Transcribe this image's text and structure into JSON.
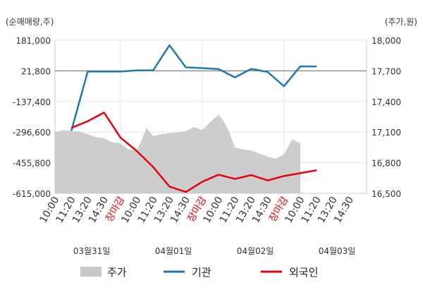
{
  "chart_data": {
    "type": "line",
    "left_axis_title": "(순매매량,주)",
    "right_axis_title": "(주가,원)",
    "left_ticks": [
      "181,000",
      "21,800",
      "-137,400",
      "-296,600",
      "-455,800",
      "-615,000"
    ],
    "left_tick_values": [
      181000,
      21800,
      -137400,
      -296600,
      -455800,
      -615000
    ],
    "right_ticks": [
      "18,000",
      "17,700",
      "17,400",
      "17,100",
      "16,800",
      "16,500"
    ],
    "right_tick_values": [
      18000,
      17700,
      17400,
      17100,
      16800,
      16500
    ],
    "left_ylim": [
      -615000,
      181000
    ],
    "right_ylim": [
      16500,
      18000
    ],
    "x_tick_labels": [
      "10:00",
      "11:20",
      "13:20",
      "14:30",
      "장마감",
      "10:00",
      "11:20",
      "13:20",
      "14:30",
      "장마감",
      "10:00",
      "11:20",
      "13:20",
      "14:30",
      "장마감",
      "10:00",
      "11:20",
      "13:20",
      "14:30"
    ],
    "x_tick_red": [
      false,
      false,
      false,
      false,
      true,
      false,
      false,
      false,
      false,
      true,
      false,
      false,
      false,
      false,
      true,
      false,
      false,
      false,
      false
    ],
    "date_labels": [
      "03월31일",
      "04월01일",
      "04월02일",
      "04월03일"
    ],
    "zero_line_value": 21800,
    "series": [
      {
        "name": "기관",
        "color": "#1f77b4",
        "axis": "left",
        "x": [
          1,
          2,
          3,
          4,
          5,
          6,
          7,
          8,
          9,
          10,
          11,
          12,
          13,
          14,
          15,
          16
        ],
        "values": [
          -290000,
          18000,
          18000,
          18000,
          24000,
          24000,
          155000,
          40000,
          36000,
          31000,
          -12000,
          32000,
          16000,
          -58000,
          45000,
          45000
        ]
      },
      {
        "name": "외국인",
        "color": "#e8000b",
        "axis": "left",
        "x": [
          1,
          2,
          3,
          4,
          5,
          6,
          7,
          8,
          9,
          10,
          11,
          12,
          13,
          14,
          15,
          16
        ],
        "values": [
          -275000,
          -240000,
          -195000,
          -325000,
          -395000,
          -478000,
          -580000,
          -608000,
          -555000,
          -518000,
          -540000,
          -520000,
          -548000,
          -525000,
          -510000,
          -495000
        ]
      },
      {
        "name": "주가",
        "color": "#c8c8c8",
        "axis": "right",
        "type": "area",
        "x": [
          0,
          0.5,
          1,
          1.5,
          2,
          2.5,
          3,
          3.5,
          4,
          4.5,
          5,
          5.3,
          5.6,
          6,
          6.5,
          7,
          7.5,
          8,
          8.5,
          9,
          9.5,
          10,
          10.3,
          10.6,
          11,
          11.5,
          12,
          12.5,
          13,
          13.5,
          14,
          14.5,
          15
        ],
        "values": [
          17100,
          17120,
          17110,
          17105,
          17080,
          17050,
          17040,
          17000,
          16990,
          16930,
          16920,
          17020,
          17140,
          17060,
          17080,
          17090,
          17095,
          17110,
          17150,
          17120,
          17200,
          17270,
          17210,
          17120,
          16950,
          16930,
          16920,
          16890,
          16860,
          16840,
          16880,
          17030,
          16990
        ]
      }
    ],
    "legend": [
      "주가",
      "기관",
      "외국인"
    ],
    "legend_position": "bottom"
  }
}
